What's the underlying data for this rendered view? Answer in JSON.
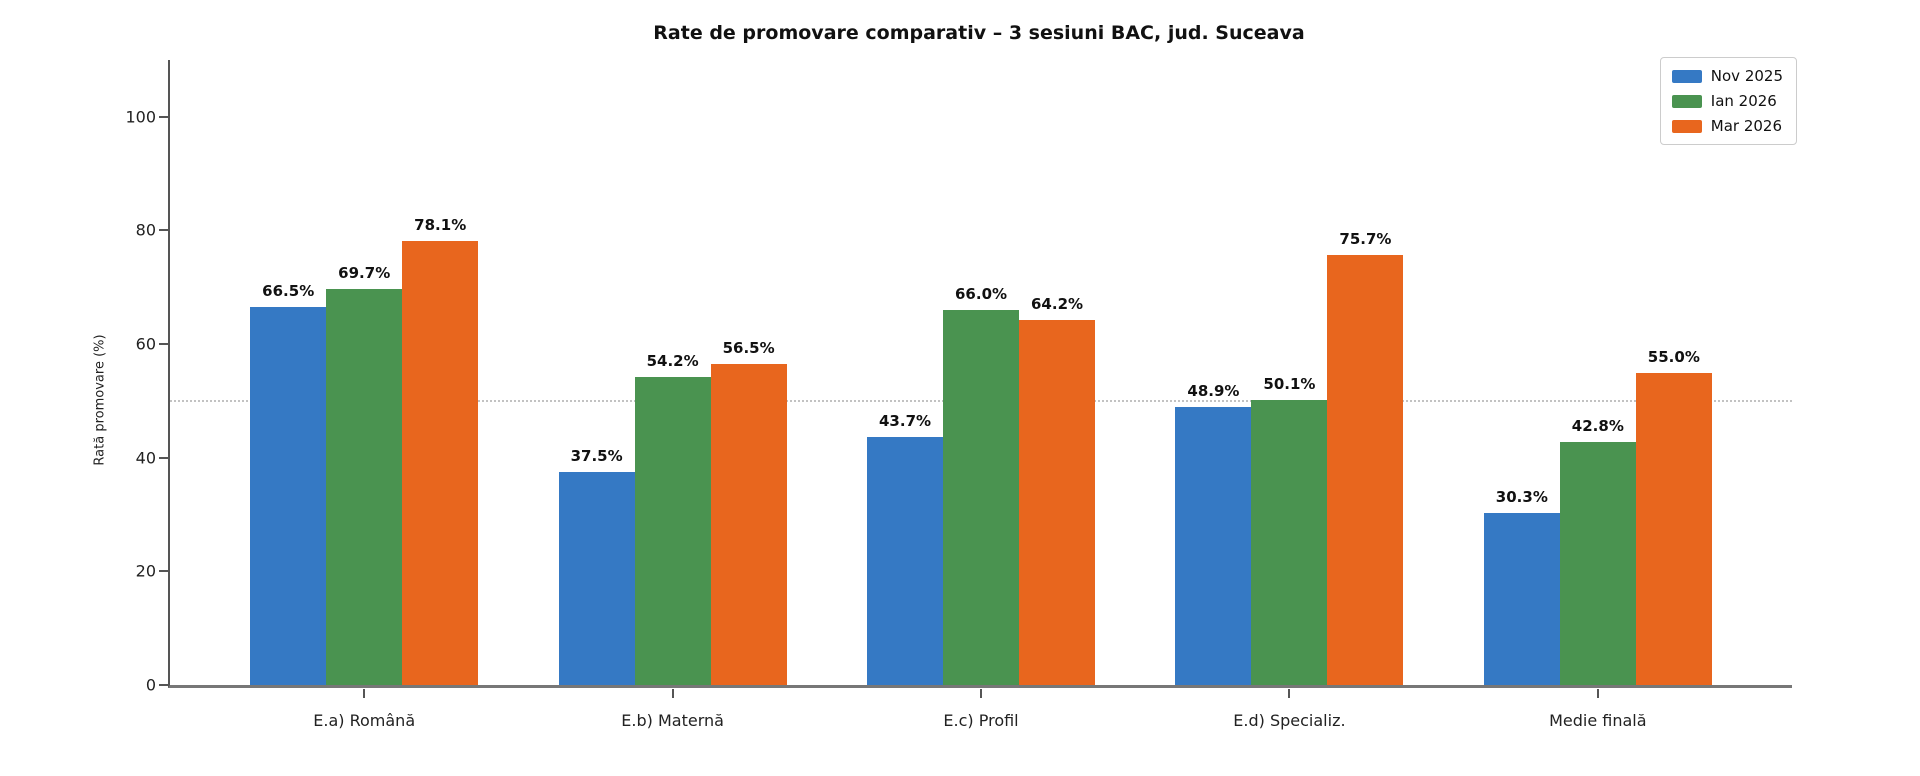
{
  "title": "Rate de promovare comparativ – 3 sesiuni BAC, jud. Suceava",
  "chart_data": {
    "type": "bar",
    "title": "Rate de promovare comparativ – 3 sesiuni BAC, jud. Suceava",
    "categories": [
      "E.a) Română",
      "E.b) Maternă",
      "E.c) Profil",
      "E.d) Specializ.",
      "Medie finală"
    ],
    "series": [
      {
        "name": "Nov 2025",
        "color": "#3579c4",
        "values": [
          66.5,
          37.5,
          43.7,
          48.9,
          30.3
        ]
      },
      {
        "name": "Ian 2026",
        "color": "#4a9350",
        "values": [
          69.7,
          54.2,
          66.0,
          50.1,
          42.8
        ]
      },
      {
        "name": "Mar 2026",
        "color": "#e8661e",
        "values": [
          78.1,
          56.5,
          64.2,
          75.7,
          55.0
        ]
      }
    ],
    "value_label_suffix": "%",
    "xlabel": "",
    "ylabel": "Rată promovare (%)",
    "ylim": [
      0,
      110
    ],
    "yticks": [
      0,
      20,
      40,
      60,
      80,
      100
    ],
    "reference_line_y": 50,
    "grid": false,
    "legend_position": "top-right",
    "colors": {
      "axis": "#555555",
      "reference_line": "#c2c2c2",
      "background": "#ffffff",
      "text": "#111111"
    }
  }
}
